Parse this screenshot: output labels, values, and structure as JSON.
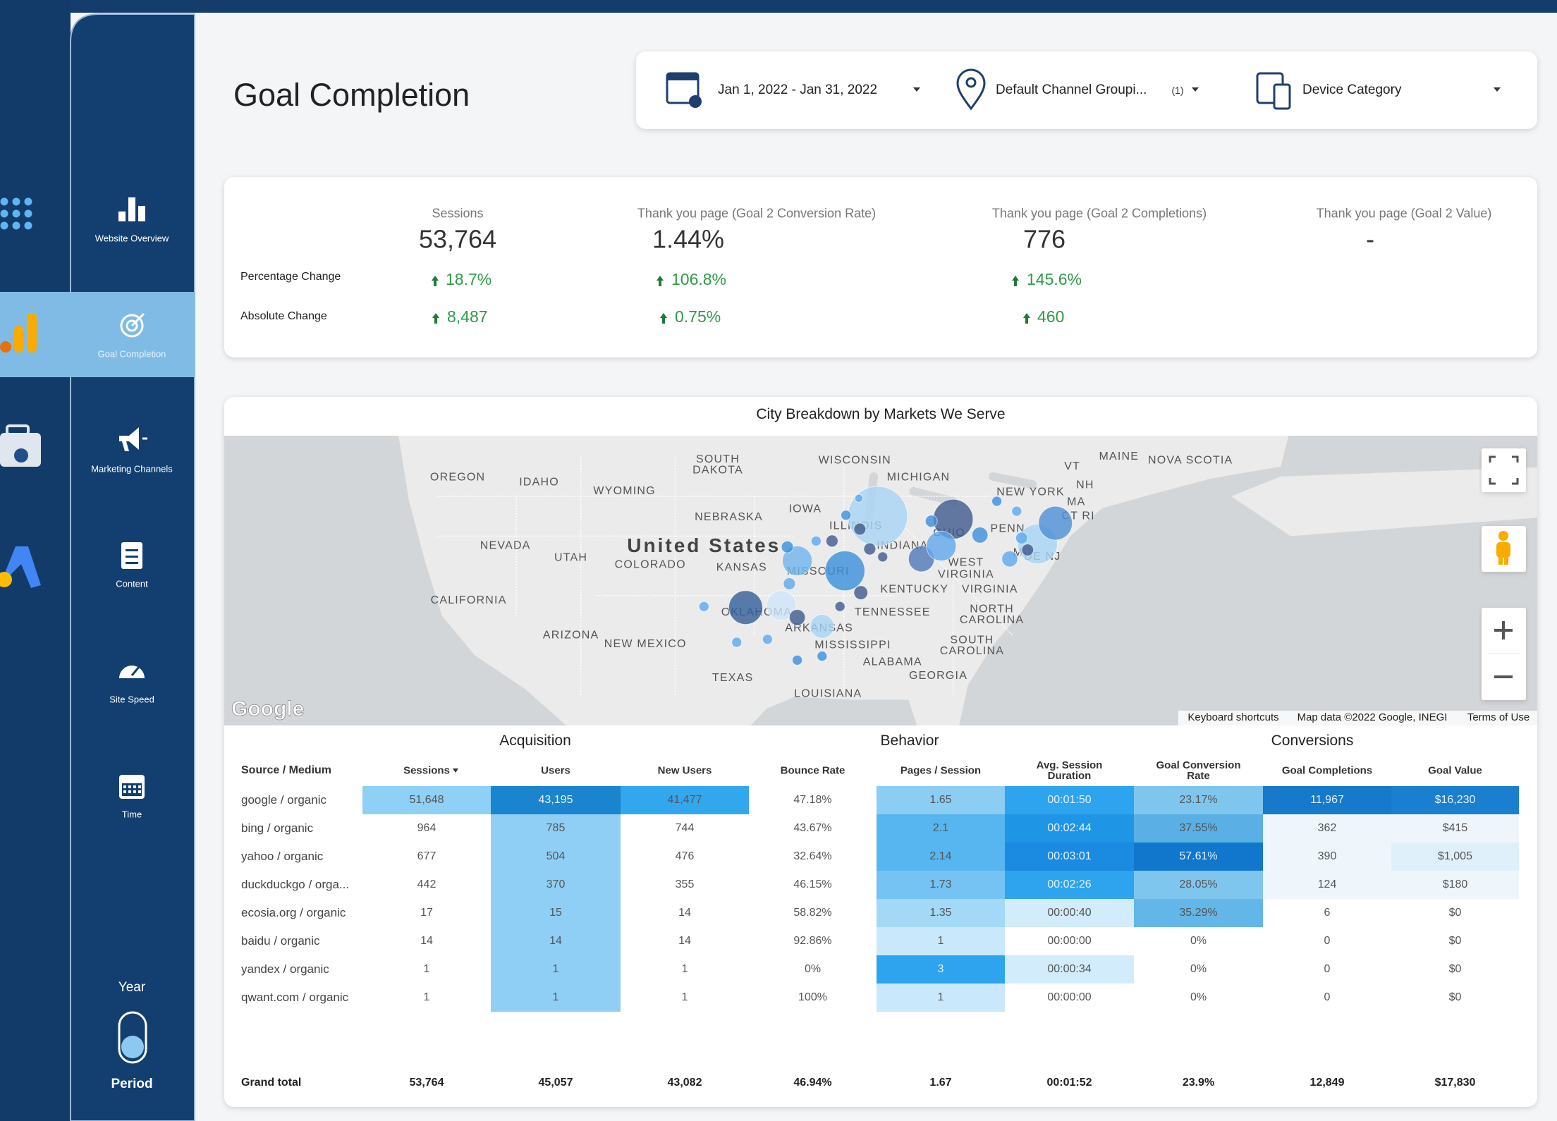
{
  "sidebar": {
    "nav": [
      "Website Overview",
      "Goal Completion",
      "Marketing Channels",
      "Content",
      "Site Speed",
      "Time"
    ],
    "toggle": {
      "top": "Year",
      "bottom": "Period"
    }
  },
  "header": {
    "title": "Goal Completion"
  },
  "filters": {
    "date": "Jan 1, 2022 - Jan 31, 2022",
    "channel": "Default Channel Groupi...",
    "channel_count": "(1)",
    "device": "Device Category"
  },
  "scorecard": {
    "row_labels": [
      "Percentage Change",
      "Absolute Change"
    ],
    "columns": [
      {
        "header": "Sessions",
        "value": "53,764",
        "percentage_change": "18.7%",
        "absolute_change": "8,487"
      },
      {
        "header": "Thank you page (Goal 2 Conversion Rate)",
        "value": "1.44%",
        "percentage_change": "106.8%",
        "absolute_change": "0.75%"
      },
      {
        "header": "Thank you page (Goal 2 Completions)",
        "value": "776",
        "percentage_change": "145.6%",
        "absolute_change": "460"
      },
      {
        "header": "Thank you page (Goal 2 Value)",
        "value": "-"
      }
    ]
  },
  "map": {
    "title": "City Breakdown by Markets We Serve",
    "labels": [
      "OREGON",
      "IDAHO",
      "WYOMING",
      "SOUTH",
      "DAKOTA",
      "WISCONSIN",
      "MICHIGAN",
      "NEBRASKA",
      "IOWA",
      "NEVADA",
      "UTAH",
      "United States",
      "COLORADO",
      "KANSAS",
      "ILLINOIS",
      "INDIANA",
      "OHIO",
      "MISSOURI",
      "CALIFORNIA",
      "OKLAHOMA",
      "ARKANSAS",
      "TENNESSEE",
      "KENTUCKY",
      "WEST",
      "VIRGINIA",
      "VIRGINIA",
      "NORTH",
      "CAROLINA",
      "SOUTH",
      "CAROLINA",
      "ARIZONA",
      "NEW MEXICO",
      "MISSISSIPPI",
      "ALABAMA",
      "GEORGIA",
      "TEXAS",
      "LOUISIANA",
      "NEW YORK",
      "PENN",
      "VT",
      "NH",
      "MA",
      "CT RI",
      "MD",
      "DE NJ",
      "MAINE",
      "NOVA SCOTIA"
    ],
    "logo": "Google",
    "footer": [
      "Keyboard shortcuts",
      "Map data ©2022 Google, INEGI",
      "Terms of Use"
    ]
  },
  "table": {
    "groups": [
      "Acquisition",
      "Behavior",
      "Conversions"
    ],
    "columns": [
      "Source / Medium",
      "Sessions",
      "Users",
      "New Users",
      "Bounce Rate",
      "Pages / Session",
      "Avg. Session Duration",
      "Goal Conversion Rate",
      "Goal Completions",
      "Goal Value"
    ],
    "rows": [
      [
        "google / organic",
        "51,648",
        "43,195",
        "41,477",
        "47.18%",
        "1.65",
        "00:01:50",
        "23.17%",
        "11,967",
        "$16,230"
      ],
      [
        "bing / organic",
        "964",
        "785",
        "744",
        "43.67%",
        "2.1",
        "00:02:44",
        "37.55%",
        "362",
        "$415"
      ],
      [
        "yahoo / organic",
        "677",
        "504",
        "476",
        "32.64%",
        "2.14",
        "00:03:01",
        "57.61%",
        "390",
        "$1,005"
      ],
      [
        "duckduckgo / orga...",
        "442",
        "370",
        "355",
        "46.15%",
        "1.73",
        "00:02:26",
        "28.05%",
        "124",
        "$180"
      ],
      [
        "ecosia.org / organic",
        "17",
        "15",
        "14",
        "58.82%",
        "1.35",
        "00:00:40",
        "35.29%",
        "6",
        "$0"
      ],
      [
        "baidu / organic",
        "14",
        "14",
        "14",
        "92.86%",
        "1",
        "00:00:00",
        "0%",
        "0",
        "$0"
      ],
      [
        "yandex / organic",
        "1",
        "1",
        "1",
        "0%",
        "3",
        "00:00:34",
        "0%",
        "0",
        "$0"
      ],
      [
        "qwant.com / organic",
        "1",
        "1",
        "1",
        "100%",
        "1",
        "00:00:00",
        "0%",
        "0",
        "$0"
      ]
    ],
    "heat": [
      [
        "#8fd0f7",
        "#1a84cf",
        "#33a7ee",
        null,
        "#8ccdf4",
        "#2ea3ee",
        "#7fc6ef",
        "#1779c9",
        "#1a7fcf"
      ],
      [
        null,
        "#8fcff5",
        null,
        null,
        "#57b6ef",
        "#1f95e6",
        "#5ab0e4",
        "#eef6fc",
        "#eef6fc"
      ],
      [
        null,
        "#8fcff5",
        null,
        null,
        "#57b6ef",
        "#1a8be0",
        "#1177cc",
        "#eef6fc",
        "#dff0fb"
      ],
      [
        null,
        "#8fcff5",
        null,
        null,
        "#74c3f2",
        "#2ea3ee",
        "#7fc6ef",
        "#eef6fc",
        "#eef6fc"
      ],
      [
        null,
        "#8fcff5",
        null,
        null,
        "#a3d9f7",
        "#d2ecfb",
        "#63b6e8",
        null,
        null
      ],
      [
        null,
        "#8fcff5",
        null,
        null,
        "#c9e8fb",
        null,
        null,
        null,
        null
      ],
      [
        null,
        "#8fcff5",
        null,
        null,
        "#2ea3ee",
        "#d2ecfb",
        null,
        null,
        null
      ],
      [
        null,
        "#8fcff5",
        null,
        null,
        "#c9e8fb",
        null,
        null,
        null,
        null
      ]
    ],
    "total": [
      "Grand total",
      "53,764",
      "45,057",
      "43,082",
      "46.94%",
      "1.67",
      "00:01:52",
      "23.9%",
      "12,849",
      "$17,830"
    ]
  }
}
